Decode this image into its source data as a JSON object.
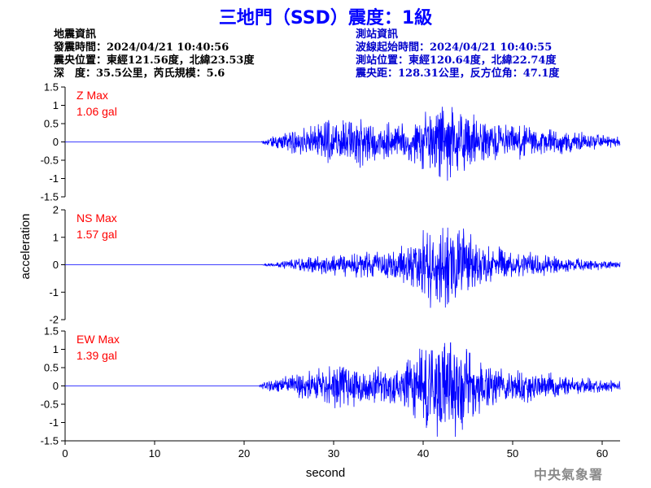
{
  "title": "三地門（SSD）震度：1級",
  "earthquake_info": {
    "heading": "地震資訊",
    "origin_time": "發震時間：2024/04/21 10:40:56",
    "epicenter": "震央位置：東經121.56度，北緯23.53度",
    "depth_magnitude": "深　度：35.5公里，芮氏規模：5.6"
  },
  "station_info": {
    "heading": "測站資訊",
    "arrival_time": "波線起始時間：2024/04/21 10:40:55",
    "station_location": "測站位置：東經120.64度，北緯22.74度",
    "distance_azimuth": "震央距：128.31公里，反方位角：47.1度"
  },
  "watermark": "中央氣象署",
  "chart_data": {
    "type": "line",
    "xlabel": "second",
    "ylabel": "acceleration",
    "xlim": [
      0,
      62
    ],
    "x_ticks": [
      "0",
      "10",
      "20",
      "30",
      "40",
      "50",
      "60"
    ],
    "line_color": "#0000ff",
    "max_label_color": "#ff0000",
    "panels": [
      {
        "component": "Z",
        "max_label": "Z Max",
        "max_value": "1.06 gal",
        "peak": 1.06,
        "ylim": [
          -1.5,
          1.5
        ],
        "y_ticks": [
          "1.5",
          "1",
          "0.5",
          "0",
          "-0.5",
          "-1",
          "-1.5"
        ],
        "envelope": [
          [
            0,
            0
          ],
          [
            21.9,
            0
          ],
          [
            22.3,
            0.08
          ],
          [
            24,
            0.2
          ],
          [
            26,
            0.3
          ],
          [
            28,
            0.45
          ],
          [
            29.5,
            0.6
          ],
          [
            31,
            0.55
          ],
          [
            33,
            0.7
          ],
          [
            35,
            0.5
          ],
          [
            37,
            0.45
          ],
          [
            39,
            0.55
          ],
          [
            40.5,
            0.8
          ],
          [
            42,
            1.06
          ],
          [
            43.5,
            0.95
          ],
          [
            45,
            0.75
          ],
          [
            47,
            0.55
          ],
          [
            50,
            0.45
          ],
          [
            53,
            0.4
          ],
          [
            56,
            0.3
          ],
          [
            59,
            0.2
          ],
          [
            62,
            0.12
          ]
        ]
      },
      {
        "component": "NS",
        "max_label": "NS Max",
        "max_value": "1.57 gal",
        "peak": 1.57,
        "ylim": [
          -2,
          2
        ],
        "y_ticks": [
          "2",
          "1",
          "0",
          "-1",
          "-2"
        ],
        "envelope": [
          [
            0,
            0
          ],
          [
            21.9,
            0
          ],
          [
            22.3,
            0.04
          ],
          [
            24,
            0.1
          ],
          [
            26,
            0.2
          ],
          [
            28,
            0.3
          ],
          [
            30,
            0.35
          ],
          [
            33,
            0.4
          ],
          [
            35,
            0.45
          ],
          [
            37,
            0.5
          ],
          [
            39,
            0.75
          ],
          [
            40.5,
            1.3
          ],
          [
            41.5,
            1.57
          ],
          [
            43,
            1.4
          ],
          [
            44.5,
            1.1
          ],
          [
            46,
            0.85
          ],
          [
            48,
            0.6
          ],
          [
            50,
            0.45
          ],
          [
            53,
            0.35
          ],
          [
            56,
            0.25
          ],
          [
            59,
            0.18
          ],
          [
            62,
            0.12
          ]
        ]
      },
      {
        "component": "EW",
        "max_label": "EW Max",
        "max_value": "1.39 gal",
        "peak": 1.39,
        "ylim": [
          -1.5,
          1.5
        ],
        "y_ticks": [
          "1.5",
          "1",
          "0.5",
          "0",
          "-0.5",
          "-1",
          "-1.5"
        ],
        "envelope": [
          [
            0,
            0
          ],
          [
            21.6,
            0
          ],
          [
            22,
            0.08
          ],
          [
            24,
            0.2
          ],
          [
            26,
            0.3
          ],
          [
            28,
            0.4
          ],
          [
            30,
            0.5
          ],
          [
            31,
            0.6
          ],
          [
            33,
            0.45
          ],
          [
            35,
            0.45
          ],
          [
            37,
            0.5
          ],
          [
            39,
            0.75
          ],
          [
            40.5,
            1.15
          ],
          [
            42,
            1.39
          ],
          [
            43.5,
            1.2
          ],
          [
            45,
            0.9
          ],
          [
            47,
            0.6
          ],
          [
            50,
            0.45
          ],
          [
            53,
            0.35
          ],
          [
            56,
            0.25
          ],
          [
            59,
            0.18
          ],
          [
            62,
            0.12
          ]
        ]
      }
    ]
  }
}
